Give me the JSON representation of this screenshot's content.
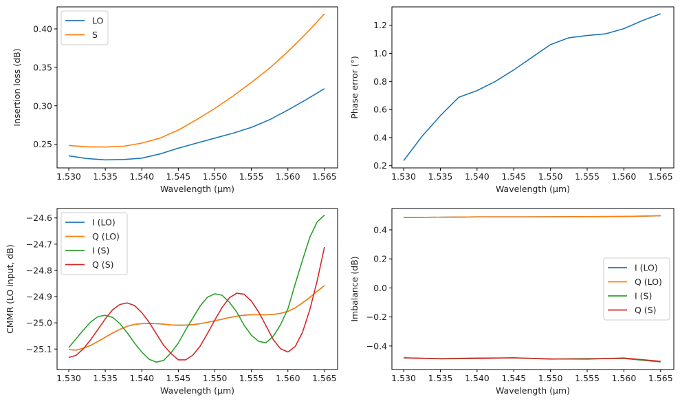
{
  "chart_data": [
    {
      "type": "line",
      "xlabel": "Wavelength (µm)",
      "ylabel": "Insertion loss (dB)",
      "xlim": [
        1.5284,
        1.5668
      ],
      "ylim": [
        0.2193,
        0.4286
      ],
      "xticks": [
        "1.530",
        "1.535",
        "1.540",
        "1.545",
        "1.550",
        "1.555",
        "1.560",
        "1.565"
      ],
      "yticks": [
        "0.25",
        "0.30",
        "0.35",
        "0.40"
      ],
      "legend": "top-left",
      "series": [
        {
          "name": "LO",
          "color": "#1f77b4",
          "x": [
            1.53,
            1.5325,
            1.535,
            1.5375,
            1.54,
            1.5425,
            1.545,
            1.5475,
            1.55,
            1.5525,
            1.555,
            1.5575,
            1.56,
            1.5625,
            1.565
          ],
          "y": [
            0.235,
            0.2315,
            0.2298,
            0.2302,
            0.232,
            0.2375,
            0.245,
            0.2515,
            0.258,
            0.2645,
            0.272,
            0.282,
            0.2946,
            0.308,
            0.3223
          ]
        },
        {
          "name": "S",
          "color": "#ff7f0e",
          "x": [
            1.53,
            1.5325,
            1.535,
            1.5375,
            1.54,
            1.5425,
            1.545,
            1.5475,
            1.55,
            1.5525,
            1.555,
            1.5575,
            1.56,
            1.5625,
            1.565
          ],
          "y": [
            0.2485,
            0.2468,
            0.2464,
            0.2475,
            0.2515,
            0.258,
            0.2685,
            0.282,
            0.2967,
            0.3128,
            0.3304,
            0.349,
            0.3705,
            0.394,
            0.4196
          ]
        }
      ]
    },
    {
      "type": "line",
      "xlabel": "Wavelength (µm)",
      "ylabel": "Phase error (°)",
      "xlim": [
        1.5284,
        1.5668
      ],
      "ylim": [
        0.184,
        1.331
      ],
      "xticks": [
        "1.530",
        "1.535",
        "1.540",
        "1.545",
        "1.550",
        "1.555",
        "1.560",
        "1.565"
      ],
      "yticks": [
        "0.2",
        "0.4",
        "0.6",
        "0.8",
        "1.0",
        "1.2"
      ],
      "legend": "none",
      "series": [
        {
          "name": "Phase error",
          "color": "#1f77b4",
          "x": [
            1.53,
            1.5325,
            1.535,
            1.5375,
            1.54,
            1.5425,
            1.545,
            1.5475,
            1.55,
            1.5525,
            1.555,
            1.5575,
            1.56,
            1.5625,
            1.565
          ],
          "y": [
            0.236,
            0.409,
            0.556,
            0.687,
            0.735,
            0.8,
            0.882,
            0.972,
            1.062,
            1.111,
            1.127,
            1.139,
            1.176,
            1.233,
            1.282
          ]
        }
      ]
    },
    {
      "type": "line",
      "xlabel": "Wavelength (µm)",
      "ylabel": "CMMR (LO input, dB)",
      "xlim": [
        1.5284,
        1.5668
      ],
      "ylim": [
        -25.178,
        -24.564
      ],
      "xticks": [
        "1.530",
        "1.535",
        "1.540",
        "1.545",
        "1.550",
        "1.555",
        "1.560",
        "1.565"
      ],
      "yticks": [
        "−25.1",
        "−25.0",
        "−24.9",
        "−24.8",
        "−24.7",
        "−24.6"
      ],
      "legend": "top-left",
      "x_start": 1.53,
      "x_step": 0.001,
      "series": [
        {
          "name": "I (LO)",
          "color": "#1f77b4",
          "y": [
            -25.102,
            -25.104,
            -25.097,
            -25.086,
            -25.071,
            -25.055,
            -25.039,
            -25.025,
            -25.013,
            -25.006,
            -25.003,
            -25.002,
            -25.003,
            -25.005,
            -25.008,
            -25.009,
            -25.009,
            -25.007,
            -25.003,
            -24.998,
            -24.992,
            -24.986,
            -24.98,
            -24.975,
            -24.971,
            -24.969,
            -24.969,
            -24.969,
            -24.968,
            -24.964,
            -24.956,
            -24.943,
            -24.924,
            -24.903,
            -24.88,
            -24.858
          ]
        },
        {
          "name": "Q (LO)",
          "color": "#ff7f0e",
          "y": [
            -25.102,
            -25.104,
            -25.097,
            -25.086,
            -25.071,
            -25.055,
            -25.039,
            -25.025,
            -25.013,
            -25.006,
            -25.003,
            -25.002,
            -25.003,
            -25.005,
            -25.008,
            -25.009,
            -25.009,
            -25.007,
            -25.003,
            -24.998,
            -24.992,
            -24.986,
            -24.98,
            -24.975,
            -24.971,
            -24.969,
            -24.969,
            -24.969,
            -24.968,
            -24.964,
            -24.956,
            -24.943,
            -24.924,
            -24.903,
            -24.88,
            -24.858
          ]
        },
        {
          "name": "I (S)",
          "color": "#2ca02c",
          "y": [
            -25.094,
            -25.061,
            -25.027,
            -24.997,
            -24.976,
            -24.971,
            -24.979,
            -25.003,
            -25.038,
            -25.077,
            -25.112,
            -25.139,
            -25.15,
            -25.143,
            -25.114,
            -25.077,
            -25.027,
            -24.981,
            -24.935,
            -24.902,
            -24.889,
            -24.895,
            -24.922,
            -24.959,
            -25.009,
            -25.047,
            -25.071,
            -25.076,
            -25.051,
            -25.007,
            -24.946,
            -24.851,
            -24.761,
            -24.674,
            -24.615,
            -24.589
          ]
        },
        {
          "name": "Q (S)",
          "color": "#d62728",
          "y": [
            -25.132,
            -25.124,
            -25.099,
            -25.064,
            -25.025,
            -24.985,
            -24.95,
            -24.93,
            -24.924,
            -24.934,
            -24.961,
            -24.998,
            -25.042,
            -25.086,
            -25.117,
            -25.141,
            -25.141,
            -25.123,
            -25.088,
            -25.04,
            -24.989,
            -24.941,
            -24.904,
            -24.887,
            -24.891,
            -24.917,
            -24.959,
            -25.011,
            -25.064,
            -25.099,
            -25.111,
            -25.09,
            -25.036,
            -24.95,
            -24.84,
            -24.711
          ]
        }
      ]
    },
    {
      "type": "line",
      "xlabel": "Wavelength (µm)",
      "ylabel": "Imbalance (dB)",
      "xlim": [
        1.5284,
        1.5668
      ],
      "ylim": [
        -0.562,
        0.547
      ],
      "xticks": [
        "1.530",
        "1.535",
        "1.540",
        "1.545",
        "1.550",
        "1.555",
        "1.560",
        "1.565"
      ],
      "yticks": [
        "−0.4",
        "−0.2",
        "0.0",
        "0.2",
        "0.4"
      ],
      "legend": "center-right",
      "series": [
        {
          "name": "I (LO)",
          "color": "#1f77b4",
          "x": [
            1.53,
            1.535,
            1.54,
            1.545,
            1.55,
            1.555,
            1.56,
            1.565
          ],
          "y": [
            0.485,
            0.487,
            0.489,
            0.489,
            0.49,
            0.491,
            0.492,
            0.497
          ]
        },
        {
          "name": "Q (LO)",
          "color": "#ff7f0e",
          "x": [
            1.53,
            1.535,
            1.54,
            1.545,
            1.55,
            1.555,
            1.56,
            1.565
          ],
          "y": [
            0.485,
            0.487,
            0.489,
            0.489,
            0.49,
            0.491,
            0.492,
            0.497
          ]
        },
        {
          "name": "I (S)",
          "color": "#2ca02c",
          "x": [
            1.53,
            1.535,
            1.54,
            1.545,
            1.55,
            1.555,
            1.56,
            1.565
          ],
          "y": [
            -0.482,
            -0.487,
            -0.483,
            -0.482,
            -0.49,
            -0.487,
            -0.486,
            -0.51
          ]
        },
        {
          "name": "Q (S)",
          "color": "#d62728",
          "x": [
            1.53,
            1.535,
            1.54,
            1.545,
            1.55,
            1.555,
            1.56,
            1.565
          ],
          "y": [
            -0.481,
            -0.488,
            -0.486,
            -0.481,
            -0.489,
            -0.49,
            -0.483,
            -0.505
          ]
        }
      ]
    }
  ]
}
